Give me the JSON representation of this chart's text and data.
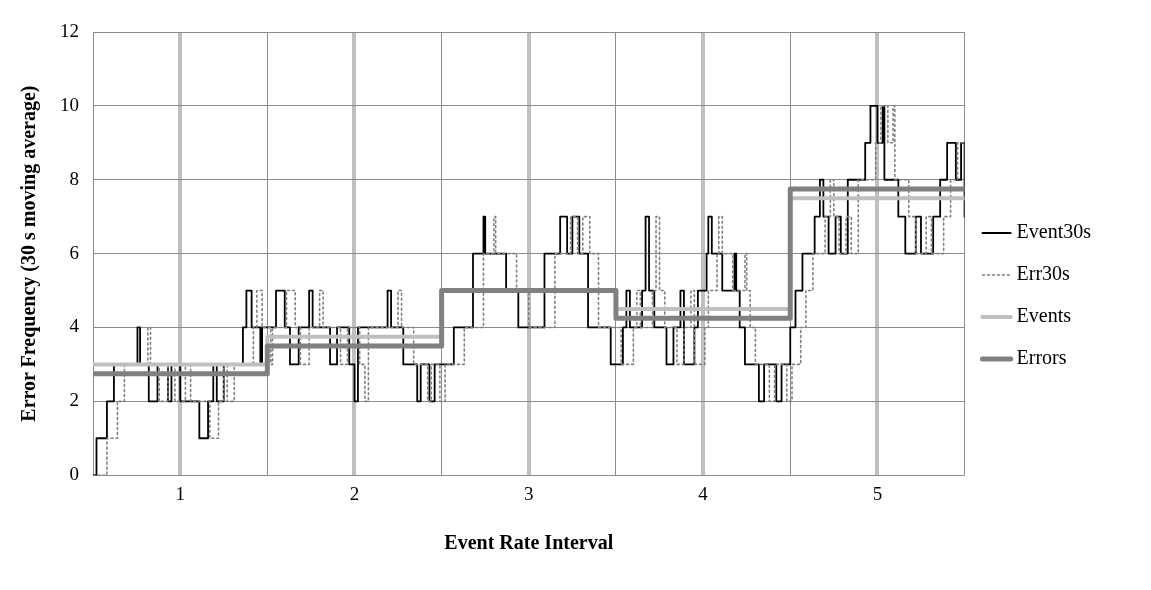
{
  "chart_data": {
    "type": "step",
    "xlabel": "Event Rate Interval",
    "ylabel": "Error Frequency (30 s moving average)",
    "xlim": [
      0.5,
      5.5
    ],
    "xticks": [
      {
        "value": 0.5,
        "label": null
      },
      1,
      {
        "value": 1.5,
        "label": null
      },
      2,
      {
        "value": 2.5,
        "label": null
      },
      3,
      {
        "value": 3.5,
        "label": null
      },
      4,
      {
        "value": 4.5,
        "label": null
      },
      5,
      {
        "value": 5.5,
        "label": null
      }
    ],
    "ylim": [
      0,
      12
    ],
    "yticks": [
      0,
      2,
      4,
      6,
      8,
      10,
      12
    ],
    "grid": true,
    "legend": "right",
    "series": [
      {
        "name": "Event30s",
        "color": "#000000",
        "line_style": "solid",
        "x": [
          0.5,
          0.52,
          0.58,
          0.62,
          0.755,
          0.77,
          0.82,
          0.87,
          0.93,
          0.95,
          1.0,
          1.11,
          1.16,
          1.19,
          1.21,
          1.25,
          1.36,
          1.38,
          1.41,
          1.46,
          1.47,
          1.55,
          1.6,
          1.63,
          1.68,
          1.74,
          1.76,
          1.86,
          1.9,
          1.97,
          2.0,
          2.02,
          2.19,
          2.21,
          2.28,
          2.36,
          2.38,
          2.43,
          2.46,
          2.57,
          2.68,
          2.74,
          2.75,
          2.87,
          2.94,
          3.09,
          3.18,
          3.22,
          3.25,
          3.29,
          3.34,
          3.47,
          3.54,
          3.56,
          3.58,
          3.65,
          3.67,
          3.69,
          3.72,
          3.79,
          3.83,
          3.87,
          3.89,
          3.95,
          3.97,
          4.02,
          4.03,
          4.05,
          4.11,
          4.18,
          4.19,
          4.21,
          4.24,
          4.32,
          4.35,
          4.42,
          4.45,
          4.5,
          4.53,
          4.57,
          4.64,
          4.67,
          4.69,
          4.72,
          4.76,
          4.79,
          4.83,
          4.93,
          4.96,
          5.0,
          5.03,
          5.04,
          5.12,
          5.16,
          5.22,
          5.25,
          5.32,
          5.36,
          5.4,
          5.45,
          5.48,
          5.5
        ],
        "values": [
          0,
          1,
          2,
          3,
          4,
          3,
          2,
          3,
          2,
          3,
          2,
          1,
          2,
          3,
          2,
          3,
          4,
          5,
          4,
          3,
          4,
          5,
          4,
          3,
          4,
          5,
          4,
          3,
          4,
          3,
          2,
          4,
          5,
          4,
          3,
          2,
          3,
          2,
          3,
          4,
          6,
          7,
          6,
          5,
          4,
          6,
          7,
          6,
          7,
          6,
          4,
          3,
          4,
          5,
          4,
          5,
          7,
          5,
          4,
          3,
          4,
          5,
          3,
          4,
          5,
          6,
          7,
          6,
          5,
          6,
          5,
          4,
          3,
          2,
          3,
          2,
          3,
          4,
          5,
          6,
          7,
          8,
          7,
          6,
          7,
          6,
          8,
          9,
          10,
          9,
          10,
          8,
          7,
          6,
          7,
          6,
          7,
          8,
          9,
          8,
          9,
          7
        ]
      },
      {
        "name": "Err30s",
        "color": "#808080",
        "line_style": "dotted",
        "x": [
          0.5,
          0.58,
          0.64,
          0.68,
          0.815,
          0.83,
          0.88,
          0.93,
          0.97,
          1.03,
          1.06,
          1.17,
          1.22,
          1.25,
          1.27,
          1.31,
          1.42,
          1.44,
          1.47,
          1.52,
          1.53,
          1.61,
          1.66,
          1.69,
          1.74,
          1.8,
          1.82,
          1.92,
          1.96,
          2.03,
          2.06,
          2.08,
          2.25,
          2.27,
          2.34,
          2.42,
          2.44,
          2.49,
          2.52,
          2.63,
          2.74,
          2.8,
          2.81,
          2.93,
          3.0,
          3.15,
          3.24,
          3.28,
          3.31,
          3.35,
          3.4,
          3.53,
          3.6,
          3.62,
          3.64,
          3.71,
          3.73,
          3.75,
          3.78,
          3.85,
          3.89,
          3.93,
          3.95,
          4.01,
          4.03,
          4.08,
          4.09,
          4.11,
          4.17,
          4.24,
          4.25,
          4.27,
          4.3,
          4.38,
          4.41,
          4.48,
          4.51,
          4.56,
          4.59,
          4.63,
          4.7,
          4.73,
          4.75,
          4.78,
          4.82,
          4.85,
          4.89,
          4.99,
          5.02,
          5.06,
          5.09,
          5.1,
          5.18,
          5.22,
          5.28,
          5.31,
          5.38,
          5.42,
          5.46,
          5.5
        ],
        "values": [
          0,
          1,
          2,
          3,
          4,
          3,
          2,
          3,
          2,
          3,
          2,
          1,
          2,
          3,
          2,
          3,
          4,
          5,
          4,
          3,
          4,
          5,
          4,
          3,
          4,
          5,
          4,
          3,
          4,
          3,
          2,
          4,
          5,
          4,
          3,
          2,
          3,
          2,
          3,
          4,
          6,
          7,
          6,
          5,
          4,
          6,
          7,
          6,
          7,
          6,
          4,
          3,
          4,
          5,
          4,
          5,
          7,
          5,
          4,
          3,
          4,
          5,
          3,
          4,
          5,
          6,
          7,
          6,
          5,
          6,
          5,
          4,
          3,
          2,
          3,
          2,
          3,
          4,
          5,
          6,
          7,
          8,
          7,
          6,
          7,
          6,
          8,
          9,
          10,
          9,
          10,
          8,
          7,
          6,
          7,
          6,
          7,
          8,
          9,
          9
        ]
      },
      {
        "name": "Events",
        "color": "#bfbfbf",
        "line_style": "solid",
        "x": [
          0.5,
          1.5,
          2.5,
          3.5,
          4.5,
          5.5
        ],
        "values": [
          3,
          3.75,
          5,
          4.5,
          7.5,
          7.5
        ]
      },
      {
        "name": "Errors",
        "color": "#808080",
        "line_style": "solid",
        "x": [
          0.5,
          1.5,
          2.5,
          3.5,
          4.5,
          5.5
        ],
        "values": [
          2.75,
          3.5,
          5,
          4.25,
          7.75,
          7.75
        ]
      }
    ]
  }
}
